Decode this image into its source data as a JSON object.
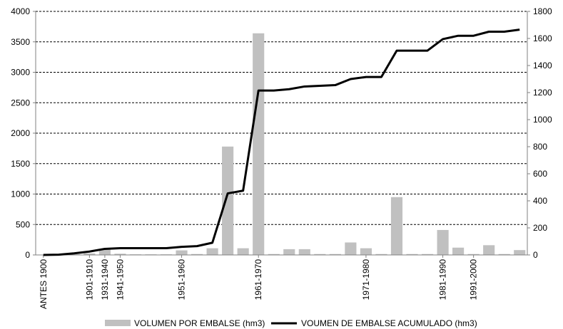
{
  "chart_data": {
    "type": "bar+line",
    "legend_position": "bottom",
    "grid": true,
    "colors": {
      "bar": "#c0c0c0",
      "line": "#000000",
      "grid": "#000000",
      "axis": "#808080"
    },
    "x_tick_labels": [
      {
        "index": 0,
        "label": "ANTES 1900"
      },
      {
        "index": 3,
        "label": "1901-1910"
      },
      {
        "index": 4,
        "label": "1931-1940"
      },
      {
        "index": 5,
        "label": "1941-1950"
      },
      {
        "index": 9,
        "label": "1951-1960"
      },
      {
        "index": 14,
        "label": "1961-1970"
      },
      {
        "index": 21,
        "label": "1971-1980"
      },
      {
        "index": 26,
        "label": "1981-1990"
      },
      {
        "index": 28,
        "label": "1991-2000"
      }
    ],
    "left_axis": {
      "min": 0,
      "max": 4000,
      "ticks": [
        0,
        500,
        1000,
        1500,
        2000,
        2500,
        3000,
        3500,
        4000
      ]
    },
    "right_axis": {
      "min": 0,
      "max": 1800,
      "ticks": [
        0,
        200,
        400,
        600,
        800,
        1000,
        1200,
        1400,
        1600,
        1800
      ]
    },
    "series": [
      {
        "name": "VOLUMEN POR EMBALSE (hm3)",
        "type": "bar",
        "axis": "left",
        "values": [
          5,
          5,
          10,
          25,
          95,
          20,
          10,
          10,
          10,
          75,
          15,
          110,
          1780,
          110,
          3640,
          15,
          95,
          95,
          15,
          15,
          205,
          110,
          15,
          950,
          15,
          15,
          410,
          120,
          15,
          160,
          15,
          80
        ]
      },
      {
        "name": "VOUMEN DE EMBALSE ACUMULADO  (hm3)",
        "type": "line",
        "axis": "right",
        "values": [
          0,
          2,
          12,
          25,
          45,
          50,
          50,
          50,
          50,
          60,
          65,
          90,
          455,
          475,
          1215,
          1215,
          1225,
          1245,
          1250,
          1255,
          1300,
          1315,
          1315,
          1510,
          1510,
          1510,
          1595,
          1620,
          1620,
          1650,
          1650,
          1665
        ]
      }
    ]
  }
}
